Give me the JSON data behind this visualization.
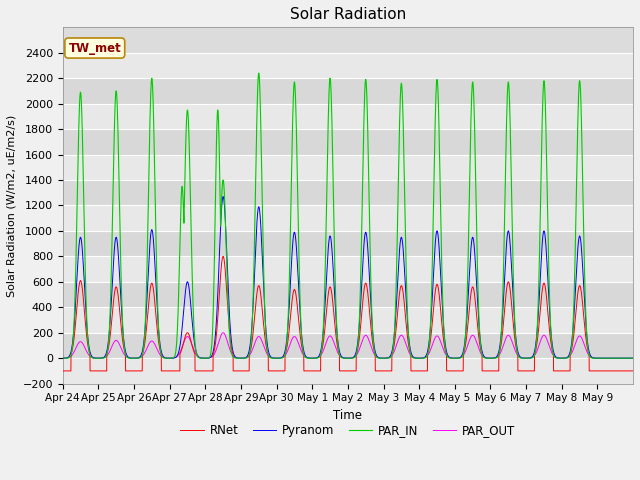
{
  "title": "Solar Radiation",
  "ylabel": "Solar Radiation (W/m2, uE/m2/s)",
  "xlabel": "Time",
  "ylim": [
    -200,
    2600
  ],
  "yticks": [
    -200,
    0,
    200,
    400,
    600,
    800,
    1000,
    1200,
    1400,
    1600,
    1800,
    2000,
    2200,
    2400
  ],
  "colors": {
    "RNet": "#ff0000",
    "Pyranom": "#0000ff",
    "PAR_IN": "#00cc00",
    "PAR_OUT": "#ff00ff"
  },
  "legend_label": "TW_met",
  "n_days": 16,
  "day_labels": [
    "Apr 24",
    "Apr 25",
    "Apr 26",
    "Apr 27",
    "Apr 28",
    "Apr 29",
    "Apr 30",
    "May 1",
    "May 2",
    "May 3",
    "May 4",
    "May 5",
    "May 6",
    "May 7",
    "May 8",
    "May 9"
  ],
  "PAR_IN_peaks": [
    2090,
    2100,
    2200,
    1950,
    1400,
    2240,
    2170,
    2200,
    2190,
    2160,
    2190,
    2170,
    2170,
    2180,
    2180,
    0
  ],
  "PAR_IN_peaks2": [
    0,
    0,
    0,
    1350,
    1950,
    0,
    0,
    0,
    0,
    0,
    0,
    0,
    0,
    0,
    0,
    0
  ],
  "Pyranom_peaks": [
    950,
    950,
    1010,
    600,
    1270,
    1190,
    990,
    960,
    990,
    950,
    1000,
    950,
    1000,
    1000,
    960,
    0
  ],
  "RNet_peaks": [
    610,
    560,
    590,
    200,
    800,
    570,
    540,
    560,
    590,
    570,
    580,
    560,
    600,
    590,
    570,
    0
  ],
  "PAR_OUT_peaks": [
    130,
    140,
    135,
    170,
    200,
    170,
    170,
    175,
    180,
    180,
    175,
    180,
    180,
    180,
    175,
    0
  ],
  "figsize": [
    6.4,
    4.8
  ],
  "dpi": 100
}
